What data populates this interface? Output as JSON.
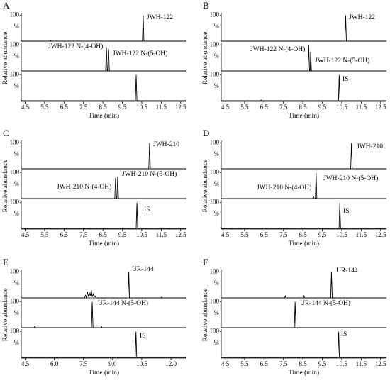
{
  "chart_data": [
    {
      "type": "line",
      "label": "A",
      "ylabel": "Relative abundance",
      "xlabel": "Time (min)",
      "color": "#000000",
      "xlim": [
        4.3,
        12.8
      ],
      "xticks": [
        4.5,
        5.5,
        6.5,
        7.5,
        8.5,
        9.5,
        10.5,
        11.5,
        12.5
      ],
      "series": [
        {
          "ylim": [
            0,
            110
          ],
          "yticks": [
            100
          ],
          "unit": "%",
          "labels": [
            "JWH-122"
          ],
          "x": [
            4.3,
            5.76,
            5.8,
            5.84,
            10.53,
            10.57,
            10.61,
            12.8
          ],
          "values": [
            0,
            0,
            3,
            0,
            0,
            100,
            0,
            0
          ]
        },
        {
          "ylim": [
            0,
            110
          ],
          "yticks": [
            100
          ],
          "unit": "%",
          "labels": [
            "JWH-122 N-(4-OH)",
            "JWH-122 N-(5-OH)"
          ],
          "x": [
            4.3,
            8.64,
            8.68,
            8.72,
            8.75,
            8.79,
            8.83,
            12.8
          ],
          "values": [
            0,
            0,
            92,
            0,
            0,
            85,
            0,
            0
          ]
        },
        {
          "ylim": [
            0,
            110
          ],
          "yticks": [
            100
          ],
          "unit": "%",
          "labels": [],
          "x": [
            4.3,
            10.17,
            10.21,
            10.25,
            12.8
          ],
          "values": [
            0,
            0,
            100,
            0,
            0
          ]
        }
      ]
    },
    {
      "type": "line",
      "label": "B",
      "ylabel": "Relative abundance",
      "xlabel": "Time (min)",
      "color": "#000000",
      "xlim": [
        4.3,
        12.8
      ],
      "xticks": [
        4.5,
        5.5,
        6.5,
        7.5,
        8.5,
        9.5,
        10.5,
        11.5,
        12.5
      ],
      "series": [
        {
          "ylim": [
            0,
            110
          ],
          "yticks": [
            100
          ],
          "unit": "%",
          "labels": [
            "JWH-122"
          ],
          "x": [
            4.3,
            10.66,
            10.7,
            10.74,
            12.8
          ],
          "values": [
            0,
            0,
            100,
            0,
            0
          ]
        },
        {
          "ylim": [
            0,
            110
          ],
          "yticks": [
            100
          ],
          "unit": "%",
          "labels": [
            "JWH-122 N-(4-OH)",
            "JWH-122 N-(5-OH)"
          ],
          "x": [
            4.3,
            8.76,
            8.8,
            8.84,
            8.87,
            8.9,
            8.94,
            12.8
          ],
          "values": [
            0,
            0,
            100,
            0,
            0,
            75,
            0,
            0
          ]
        },
        {
          "ylim": [
            0,
            110
          ],
          "yticks": [
            100
          ],
          "unit": "%",
          "labels": [
            "IS"
          ],
          "x": [
            4.3,
            6.3,
            6.35,
            6.4,
            10.33,
            10.37,
            10.41,
            12.8
          ],
          "values": [
            0,
            0,
            3,
            0,
            0,
            100,
            0,
            0
          ]
        }
      ]
    },
    {
      "type": "line",
      "label": "C",
      "ylabel": "Relative abundance",
      "xlabel": "Time (min)",
      "color": "#000000",
      "xlim": [
        4.3,
        12.8
      ],
      "xticks": [
        4.5,
        5.5,
        6.5,
        7.5,
        8.5,
        9.5,
        10.5,
        11.5,
        12.5
      ],
      "series": [
        {
          "ylim": [
            0,
            110
          ],
          "yticks": [
            100
          ],
          "unit": "%",
          "labels": [
            "JWH-210"
          ],
          "x": [
            4.3,
            10.86,
            10.9,
            10.94,
            12.8
          ],
          "values": [
            0,
            0,
            100,
            0,
            0
          ]
        },
        {
          "ylim": [
            0,
            110
          ],
          "yticks": [
            100
          ],
          "unit": "%",
          "labels": [
            "JWH-210 N-(5-OH)",
            "JWH-210 N-(4-OH)"
          ],
          "x": [
            4.3,
            9.11,
            9.15,
            9.19,
            9.22,
            9.26,
            9.3,
            12.8
          ],
          "values": [
            0,
            0,
            80,
            0,
            0,
            85,
            0,
            0
          ]
        },
        {
          "ylim": [
            0,
            110
          ],
          "yticks": [
            100
          ],
          "unit": "%",
          "labels": [
            "IS"
          ],
          "x": [
            4.3,
            10.21,
            10.25,
            10.29,
            12.8
          ],
          "values": [
            0,
            0,
            100,
            0,
            0
          ]
        }
      ]
    },
    {
      "type": "line",
      "label": "D",
      "ylabel": "Relative abundance",
      "xlabel": "Time (min)",
      "color": "#000000",
      "xlim": [
        4.3,
        12.8
      ],
      "xticks": [
        4.5,
        5.5,
        6.5,
        7.5,
        8.5,
        9.5,
        10.5,
        11.5,
        12.5
      ],
      "series": [
        {
          "ylim": [
            0,
            110
          ],
          "yticks": [
            100
          ],
          "unit": "%",
          "labels": [
            "JWH-210"
          ],
          "x": [
            4.3,
            10.96,
            11.0,
            11.04,
            12.8
          ],
          "values": [
            0,
            0,
            100,
            0,
            0
          ]
        },
        {
          "ylim": [
            0,
            110
          ],
          "yticks": [
            100
          ],
          "unit": "%",
          "labels": [
            "JWH-210 N-(5-OH)",
            "JWH-210 N-(4-OH)"
          ],
          "x": [
            4.3,
            9.0,
            9.04,
            9.08,
            9.14,
            9.18,
            9.22,
            12.8
          ],
          "values": [
            0,
            0,
            8,
            0,
            0,
            100,
            0,
            0
          ]
        },
        {
          "ylim": [
            0,
            110
          ],
          "yticks": [
            100
          ],
          "unit": "%",
          "labels": [
            "IS"
          ],
          "x": [
            4.3,
            10.36,
            10.4,
            10.44,
            12.8
          ],
          "values": [
            0,
            0,
            100,
            0,
            0
          ]
        }
      ]
    },
    {
      "type": "line",
      "label": "E",
      "ylabel": "Relative abundance",
      "xlabel": "Time (min)",
      "color": "#000000",
      "xlim": [
        4.3,
        12.8
      ],
      "xticks": [
        4.5,
        {
          "value": 6,
          "label": "6.0"
        },
        7.5,
        {
          "value": 9,
          "label": "9.0"
        },
        10.5,
        {
          "value": 12,
          "label": "12.0"
        }
      ],
      "series": [
        {
          "ylim": [
            0,
            110
          ],
          "yticks": [
            100
          ],
          "unit": "%",
          "labels": [
            "UR-144"
          ],
          "x": [
            4.3,
            7.55,
            7.6,
            7.65,
            7.7,
            7.75,
            7.8,
            7.85,
            7.9,
            7.95,
            8.0,
            8.05,
            8.1,
            8.15,
            8.2,
            9.79,
            9.83,
            9.87,
            11.5,
            11.52,
            11.54,
            12.8
          ],
          "values": [
            0,
            0,
            10,
            2,
            25,
            5,
            20,
            8,
            30,
            4,
            15,
            3,
            8,
            0,
            0,
            0,
            100,
            0,
            0,
            3,
            0,
            0
          ]
        },
        {
          "ylim": [
            0,
            110
          ],
          "yticks": [
            100
          ],
          "unit": "%",
          "labels": [
            "UR-144 N-(5-OH)"
          ],
          "x": [
            4.3,
            4.96,
            5.0,
            5.04,
            7.91,
            7.95,
            7.99,
            8.4,
            8.43,
            8.46,
            12.8
          ],
          "values": [
            0,
            0,
            5,
            0,
            0,
            100,
            0,
            0,
            4,
            0,
            0
          ]
        },
        {
          "ylim": [
            0,
            110
          ],
          "yticks": [
            100
          ],
          "unit": "%",
          "labels": [
            "IS"
          ],
          "x": [
            4.3,
            10.16,
            10.2,
            10.24,
            12.8
          ],
          "values": [
            0,
            0,
            100,
            0,
            0
          ]
        }
      ]
    },
    {
      "type": "line",
      "label": "F",
      "ylabel": "Relative abundance",
      "xlabel": "Time (min)",
      "color": "#000000",
      "xlim": [
        4.3,
        12.8
      ],
      "xticks": [
        4.5,
        5.5,
        6.5,
        7.5,
        8.5,
        9.5,
        10.5,
        11.5,
        12.5
      ],
      "series": [
        {
          "ylim": [
            0,
            110
          ],
          "yticks": [
            100
          ],
          "unit": "%",
          "labels": [
            "UR-144"
          ],
          "x": [
            4.3,
            7.56,
            7.6,
            7.64,
            8.51,
            8.55,
            8.59,
            9.93,
            9.97,
            10.01,
            12.8
          ],
          "values": [
            0,
            0,
            8,
            0,
            0,
            8,
            0,
            0,
            100,
            0,
            0
          ]
        },
        {
          "ylim": [
            0,
            110
          ],
          "yticks": [
            100
          ],
          "unit": "%",
          "labels": [
            "UR-144 N-(5-OH)"
          ],
          "x": [
            4.3,
            8.06,
            8.1,
            8.14,
            12.8
          ],
          "values": [
            0,
            0,
            100,
            0,
            0
          ]
        },
        {
          "ylim": [
            0,
            110
          ],
          "yticks": [
            100
          ],
          "unit": "%",
          "labels": [
            "IS"
          ],
          "x": [
            4.3,
            10.3,
            10.34,
            10.38,
            12.8
          ],
          "values": [
            0,
            0,
            100,
            0,
            0
          ]
        }
      ]
    }
  ]
}
